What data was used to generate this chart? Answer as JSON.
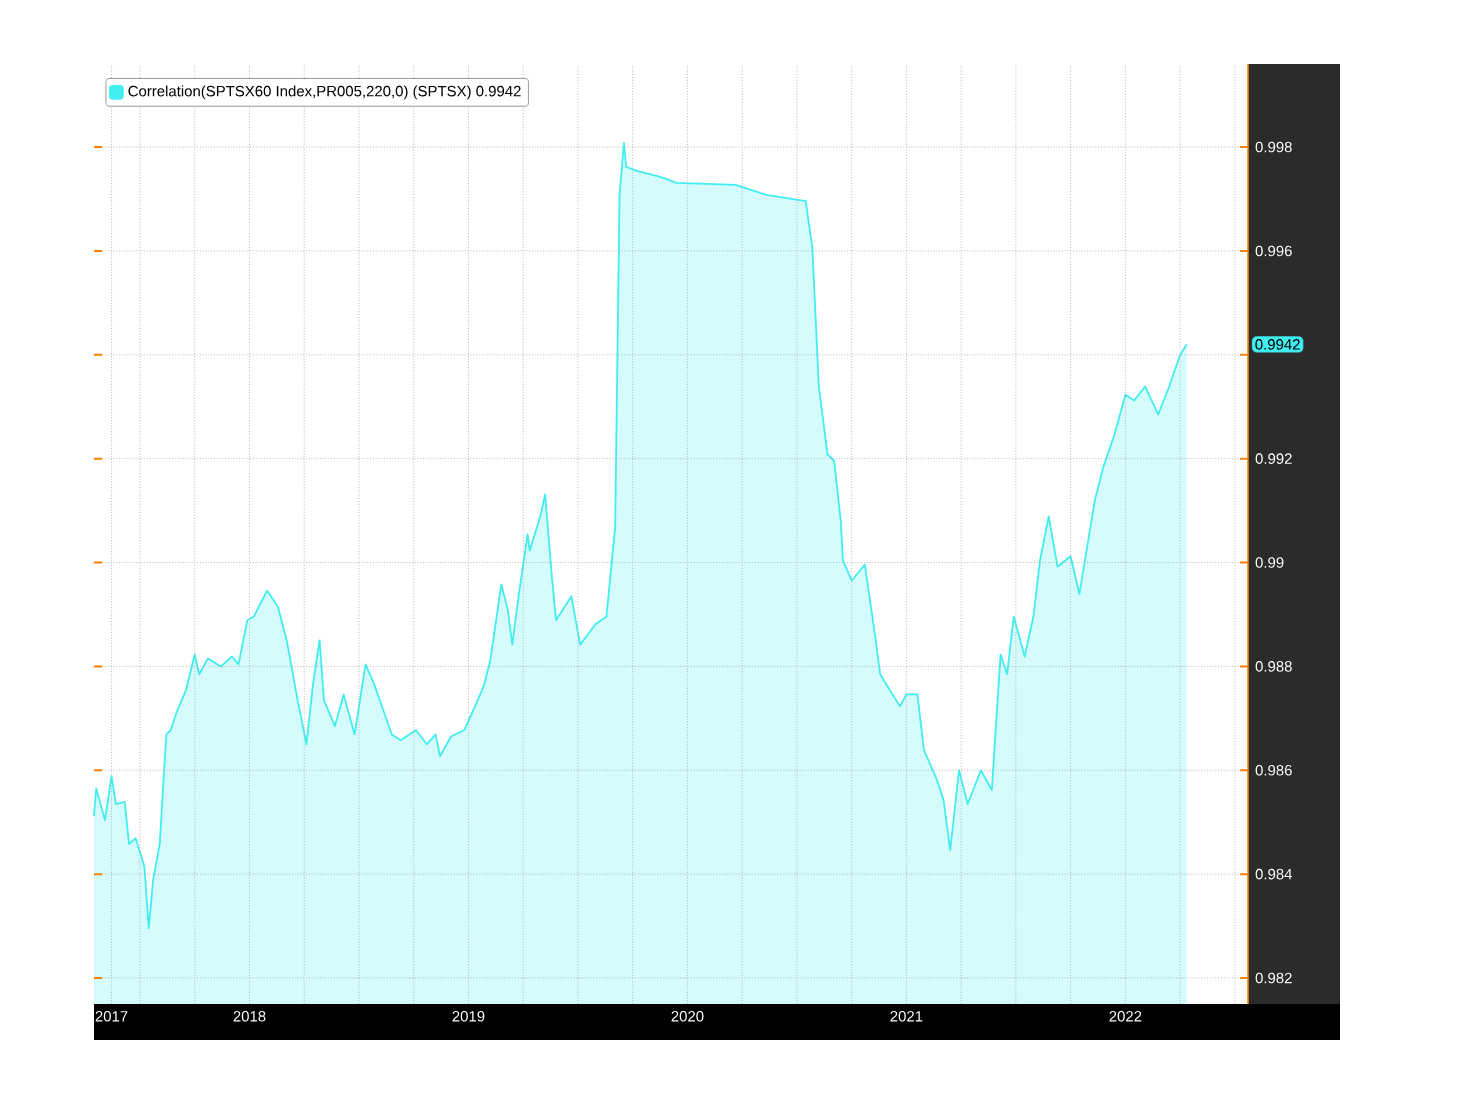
{
  "chart_data": {
    "type": "area",
    "x": [
      2017.29,
      2017.3,
      2017.34,
      2017.37,
      2017.39,
      2017.43,
      2017.45,
      2017.48,
      2017.52,
      2017.54,
      2017.56,
      2017.59,
      2017.62,
      2017.64,
      2017.67,
      2017.71,
      2017.75,
      2017.77,
      2017.81,
      2017.87,
      2017.92,
      2017.95,
      2017.99,
      2018.02,
      2018.08,
      2018.13,
      2018.17,
      2018.22,
      2018.26,
      2018.29,
      2018.32,
      2018.34,
      2018.39,
      2018.43,
      2018.48,
      2018.53,
      2018.57,
      2018.65,
      2018.69,
      2018.76,
      2018.81,
      2018.85,
      2018.87,
      2018.92,
      2018.98,
      2019.03,
      2019.07,
      2019.1,
      2019.15,
      2019.18,
      2019.2,
      2019.23,
      2019.27,
      2019.28,
      2019.33,
      2019.35,
      2019.38,
      2019.4,
      2019.47,
      2019.51,
      2019.58,
      2019.63,
      2019.67,
      2019.69,
      2019.71,
      2019.72,
      2019.77,
      2019.88,
      2019.95,
      2020.22,
      2020.36,
      2020.54,
      2020.57,
      2020.6,
      2020.64,
      2020.67,
      2020.7,
      2020.71,
      2020.75,
      2020.81,
      2020.86,
      2020.88,
      2020.97,
      2021.0,
      2021.05,
      2021.08,
      2021.14,
      2021.17,
      2021.2,
      2021.24,
      2021.28,
      2021.34,
      2021.39,
      2021.43,
      2021.46,
      2021.49,
      2021.54,
      2021.58,
      2021.61,
      2021.65,
      2021.69,
      2021.75,
      2021.79,
      2021.83,
      2021.86,
      2021.9,
      2021.95,
      2022.0,
      2022.04,
      2022.09,
      2022.15,
      2022.2,
      2022.25,
      2022.28
    ],
    "series": [
      {
        "name": "Correlation(SPTSX60 Index,PR005,220,0) (SPTSX) 0.9942",
        "color": "#40eef0",
        "values": [
          0.98512,
          0.98565,
          0.98504,
          0.98589,
          0.98535,
          0.98539,
          0.98458,
          0.98469,
          0.98415,
          0.98296,
          0.98389,
          0.98458,
          0.98669,
          0.98677,
          0.98715,
          0.98754,
          0.98823,
          0.98785,
          0.98815,
          0.988,
          0.98819,
          0.98804,
          0.98889,
          0.98896,
          0.98946,
          0.98915,
          0.9885,
          0.98735,
          0.9865,
          0.98765,
          0.9885,
          0.98735,
          0.98685,
          0.98746,
          0.98669,
          0.98804,
          0.98765,
          0.98669,
          0.98658,
          0.98677,
          0.9865,
          0.98669,
          0.98627,
          0.98665,
          0.98677,
          0.98723,
          0.98762,
          0.98812,
          0.98958,
          0.98908,
          0.98842,
          0.98939,
          0.99054,
          0.99023,
          0.99092,
          0.99131,
          0.98977,
          0.98889,
          0.98935,
          0.98842,
          0.98881,
          0.98896,
          0.99069,
          0.99708,
          0.99808,
          0.99762,
          0.99754,
          0.99742,
          0.99731,
          0.99727,
          0.99708,
          0.99696,
          0.99608,
          0.99339,
          0.99208,
          0.99196,
          0.99081,
          0.99004,
          0.98965,
          0.98996,
          0.9885,
          0.98785,
          0.98723,
          0.98746,
          0.98746,
          0.98639,
          0.98581,
          0.98542,
          0.98446,
          0.986,
          0.98535,
          0.986,
          0.98562,
          0.98823,
          0.98785,
          0.98896,
          0.98819,
          0.98896,
          0.99004,
          0.99089,
          0.98992,
          0.99012,
          0.98939,
          0.99042,
          0.99119,
          0.99185,
          0.99246,
          0.99323,
          0.99312,
          0.99339,
          0.99285,
          0.99339,
          0.994,
          0.9942
        ]
      }
    ],
    "xlim": [
      2017.29,
      2022.56
    ],
    "xticks": [
      {
        "value": 2017.37,
        "label": "2017"
      },
      {
        "value": 2017.5,
        "label": null
      },
      {
        "value": 2017.75,
        "label": null
      },
      {
        "value": 2018,
        "label": "2018"
      },
      {
        "value": 2018.25,
        "label": null
      },
      {
        "value": 2018.5,
        "label": null
      },
      {
        "value": 2018.75,
        "label": null
      },
      {
        "value": 2019,
        "label": "2019"
      },
      {
        "value": 2019.25,
        "label": null
      },
      {
        "value": 2019.5,
        "label": null
      },
      {
        "value": 2019.75,
        "label": null
      },
      {
        "value": 2020,
        "label": "2020"
      },
      {
        "value": 2020.25,
        "label": null
      },
      {
        "value": 2020.5,
        "label": null
      },
      {
        "value": 2020.75,
        "label": null
      },
      {
        "value": 2021,
        "label": "2021"
      },
      {
        "value": 2021.25,
        "label": null
      },
      {
        "value": 2021.5,
        "label": null
      },
      {
        "value": 2021.75,
        "label": null
      },
      {
        "value": 2022,
        "label": "2022"
      },
      {
        "value": 2022.25,
        "label": null
      },
      {
        "value": 2022.5,
        "label": null
      }
    ],
    "ylim": [
      0.9815,
      0.9996
    ],
    "yticks": [
      0.982,
      0.984,
      0.986,
      {
        "value": 0.988,
        "label": "0.988"
      },
      {
        "value": 0.99,
        "label": "0.99"
      },
      0.992,
      {
        "value": 0.994,
        "label": null
      },
      0.996,
      0.998
    ],
    "annotations": [
      "0.9942"
    ],
    "grid": true,
    "legend": "top left"
  }
}
